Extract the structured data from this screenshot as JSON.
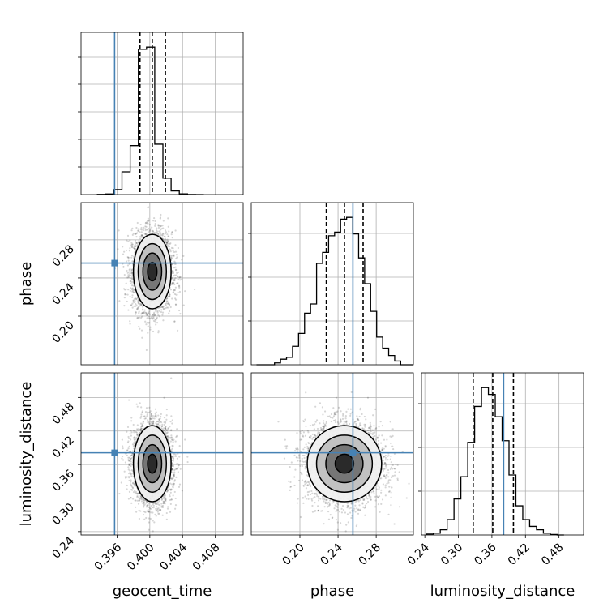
{
  "chart_data": {
    "type": "corner",
    "parameters": [
      "geocent_time",
      "phase",
      "luminosity_distance"
    ],
    "axis_labels": {
      "x": [
        "geocent_time",
        "phase",
        "luminosity_distance"
      ],
      "y": [
        "phase",
        "luminosity_distance"
      ]
    },
    "ranges": {
      "geocent_time": [
        0.3916,
        0.4114
      ],
      "phase": [
        0.149,
        0.319
      ],
      "luminosity_distance": [
        0.234,
        0.524
      ]
    },
    "ticks": {
      "geocent_time": [
        "0.396",
        "0.400",
        "0.404",
        "0.408"
      ],
      "phase": [
        "0.20",
        "0.24",
        "0.28"
      ],
      "luminosity_distance": [
        "0.24",
        "0.30",
        "0.36",
        "0.42",
        "0.48"
      ]
    },
    "truths": {
      "geocent_time": 0.3957,
      "phase": 0.2556,
      "luminosity_distance": 0.381
    },
    "quantiles": {
      "geocent_time": [
        0.3988,
        0.4003,
        0.4019
      ],
      "phase": [
        0.2277,
        0.2467,
        0.2663
      ],
      "luminosity_distance": [
        0.3265,
        0.3615,
        0.3985
      ]
    },
    "histograms": {
      "geocent_time": {
        "bin_edges": [
          0.3936,
          0.3946,
          0.3956,
          0.3966,
          0.3976,
          0.3986,
          0.3996,
          0.4006,
          0.4016,
          0.4026,
          0.4036,
          0.4046,
          0.4056,
          0.4066
        ],
        "counts": [
          0.2,
          0.8,
          7,
          32,
          69,
          205,
          208,
          71,
          23,
          5,
          1,
          0.1,
          0
        ]
      },
      "phase": {
        "bin_edges": [
          0.1545,
          0.1608,
          0.1671,
          0.1734,
          0.1797,
          0.186,
          0.1923,
          0.1986,
          0.2049,
          0.2112,
          0.2175,
          0.2238,
          0.2301,
          0.2364,
          0.2427,
          0.249,
          0.2553,
          0.2616,
          0.2679,
          0.2742,
          0.2805,
          0.2868,
          0.2931,
          0.2994,
          0.3057,
          0.312,
          0.3183
        ],
        "counts": [
          0,
          0,
          0,
          1,
          3,
          4,
          10,
          17,
          28,
          33,
          55,
          61,
          70,
          72,
          79,
          80,
          71,
          58,
          44,
          29,
          15,
          9,
          5,
          2,
          0,
          0
        ]
      },
      "luminosity_distance": {
        "bin_edges": [
          0.243,
          0.2553,
          0.2676,
          0.2799,
          0.2922,
          0.3045,
          0.3168,
          0.3291,
          0.3414,
          0.3537,
          0.366,
          0.3783,
          0.3906,
          0.4029,
          0.4152,
          0.4275,
          0.4398,
          0.4521,
          0.4644,
          0.4767,
          0.489
        ],
        "counts": [
          0.5,
          1,
          3,
          9,
          21,
          34,
          54,
          75,
          86,
          82,
          69,
          55,
          35,
          17,
          9,
          5,
          3,
          1,
          0.3,
          0
        ]
      }
    },
    "posterior_2d": {
      "phase_vs_geocent_time": {
        "mean": [
          0.4003,
          0.2467
        ],
        "sd": [
          0.00115,
          0.0195
        ],
        "corr": 0.0,
        "n_points": 3500
      },
      "luminosity_distance_vs_geocent_time": {
        "mean": [
          0.4003,
          0.3615
        ],
        "sd": [
          0.00115,
          0.034
        ],
        "corr": 0.0,
        "n_points": 3500
      },
      "luminosity_distance_vs_phase": {
        "mean": [
          0.2467,
          0.3615
        ],
        "sd": [
          0.0195,
          0.034
        ],
        "corr": 0.0,
        "n_points": 3500
      }
    },
    "contour_levels_sigma": [
      0.5,
      1.0,
      1.5,
      2.0
    ],
    "grid": true,
    "colors": {
      "truth": "#4682b4",
      "line": "#000000",
      "grid": "#b0b0b0",
      "points": "#000000"
    }
  }
}
